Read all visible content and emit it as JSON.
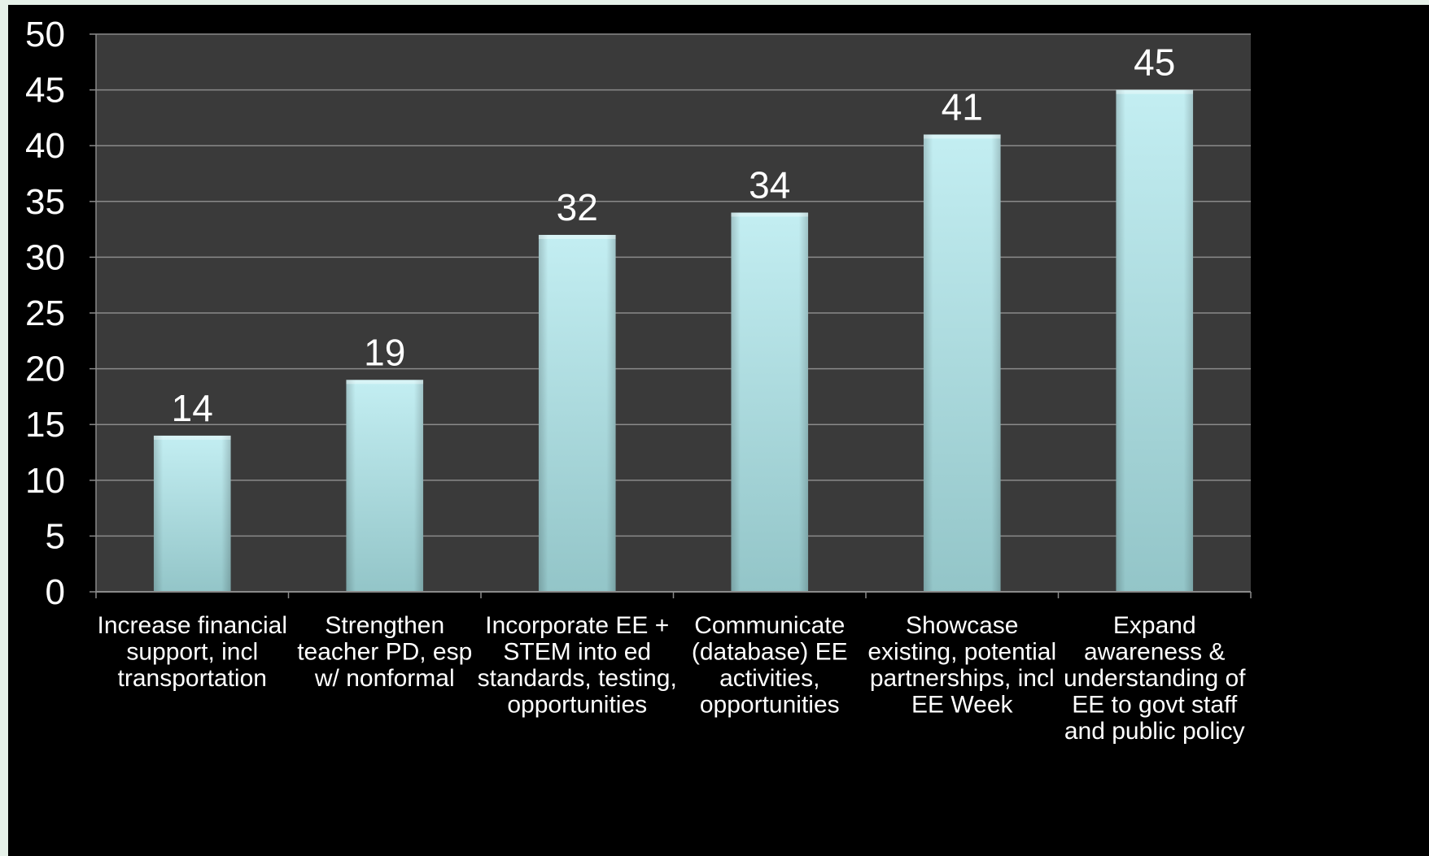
{
  "colors": {
    "page_background": "#e6f1e9",
    "frame_background": "#000000",
    "plot_background": "#3a3a3a",
    "gridline": "#8a8a8a",
    "bar_top": "#c3eef2",
    "bar_bottom": "#93c5c8",
    "text": "#ffffff"
  },
  "chart_data": {
    "type": "bar",
    "title": "",
    "xlabel": "",
    "ylabel": "",
    "ylim": [
      0,
      50
    ],
    "y_ticks": [
      0,
      5,
      10,
      15,
      20,
      25,
      30,
      35,
      40,
      45,
      50
    ],
    "grid": true,
    "legend": "none",
    "categories": [
      [
        "Increase financial",
        "support, incl",
        "transportation"
      ],
      [
        "Strengthen",
        "teacher PD, esp",
        "w/ nonformal"
      ],
      [
        "Incorporate EE +",
        "STEM into ed",
        "standards, testing,",
        "opportunities"
      ],
      [
        "Communicate",
        "(database) EE",
        "activities,",
        "opportunities"
      ],
      [
        "Showcase",
        "existing, potential",
        "partnerships, incl",
        "EE Week"
      ],
      [
        "Expand",
        "awareness &",
        "understanding of",
        "EE to govt staff",
        "and public policy"
      ]
    ],
    "values": [
      14,
      19,
      32,
      34,
      41,
      45
    ]
  }
}
